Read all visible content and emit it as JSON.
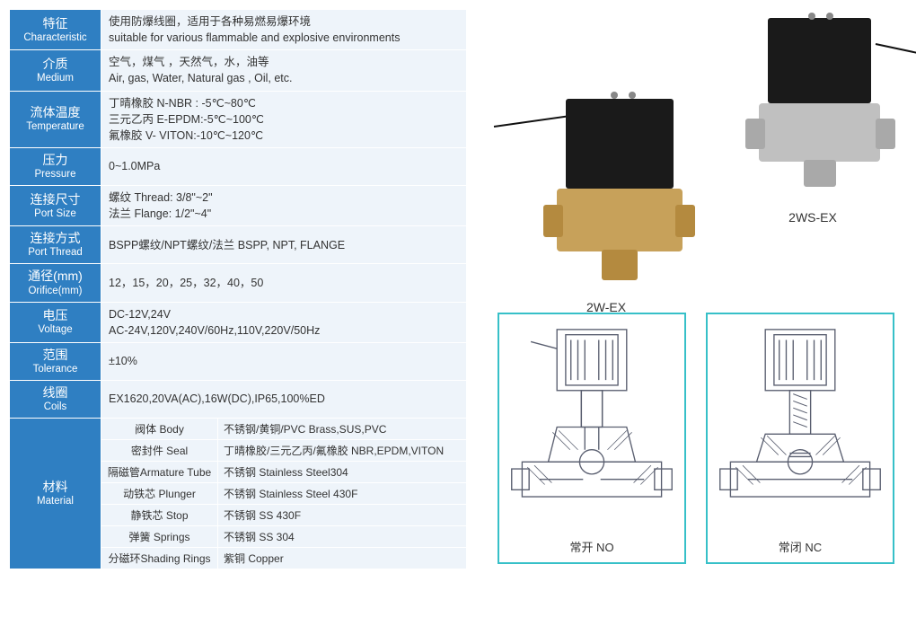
{
  "colors": {
    "header_bg": "#2f7fc2",
    "header_fg": "#ffffff",
    "cell_bg": "#eef4fa",
    "border": "#ffffff",
    "diagram_border": "#37c0c8",
    "text": "#333333",
    "brass": "#c7a15a",
    "steel": "#b8b8b8",
    "solenoid": "#1a1a1a"
  },
  "spec_rows": [
    {
      "cn": "特征",
      "en": "Characteristic",
      "lines": [
        "使用防爆线圈，适用于各种易燃易爆环境",
        "suitable for various flammable and explosive environments"
      ]
    },
    {
      "cn": "介质",
      "en": "Medium",
      "lines": [
        "空气，煤气 ，天然气，水，油等",
        "Air, gas, Water, Natural gas , Oil, etc."
      ]
    },
    {
      "cn": "流体温度",
      "en": "Temperature",
      "lines": [
        "丁晴橡胶 N-NBR : -5℃~80℃",
        "三元乙丙 E-EPDM:-5℃~100℃",
        "氟橡胶 V- VITON:-10℃~120℃"
      ]
    },
    {
      "cn": "压力",
      "en": "Pressure",
      "lines": [
        "0~1.0MPa"
      ]
    },
    {
      "cn": "连接尺寸",
      "en": "Port Size",
      "lines": [
        "螺纹  Thread: 3/8\"~2\"",
        "法兰  Flange: 1/2\"~4\""
      ]
    },
    {
      "cn": "连接方式",
      "en": "Port Thread",
      "lines": [
        "BSPP螺纹/NPT螺纹/法兰  BSPP, NPT, FLANGE"
      ]
    },
    {
      "cn": "通径(mm)",
      "en": "Orifice(mm)",
      "lines": [
        "12，15，20，25，32，40，50"
      ]
    },
    {
      "cn": "电压",
      "en": "Voltage",
      "lines": [
        "DC-12V,24V",
        "AC-24V,120V,240V/60Hz,110V,220V/50Hz"
      ]
    },
    {
      "cn": "范围",
      "en": "Tolerance",
      "lines": [
        "±10%"
      ]
    },
    {
      "cn": "线圈",
      "en": "Coils",
      "lines": [
        "EX1620,20VA(AC),16W(DC),IP65,100%ED"
      ]
    }
  ],
  "material": {
    "header_cn": "材料",
    "header_en": "Material",
    "rows": [
      {
        "part": "阀体 Body",
        "val": "不锈钢/黄铜/PVC  Brass,SUS,PVC"
      },
      {
        "part": "密封件 Seal",
        "val": "丁晴橡胶/三元乙丙/氟橡胶 NBR,EPDM,VITON"
      },
      {
        "part": "隔磁管Armature Tube",
        "val": "不锈钢 Stainless Steel304"
      },
      {
        "part": "动铁芯 Plunger",
        "val": "不锈钢 Stainless Steel 430F"
      },
      {
        "part": "静铁芯 Stop",
        "val": "不锈钢 SS 430F"
      },
      {
        "part": "弹簧 Springs",
        "val": "不锈钢 SS 304"
      },
      {
        "part": "分磁环Shading Rings",
        "val": "紫铜 Copper"
      }
    ]
  },
  "products": [
    {
      "label": "2W-EX",
      "body_color": "#c7a15a"
    },
    {
      "label": "2WS-EX",
      "body_color": "#bfbfbf"
    }
  ],
  "diagrams": [
    {
      "caption": "常开 NO"
    },
    {
      "caption": "常闭 NC"
    }
  ]
}
